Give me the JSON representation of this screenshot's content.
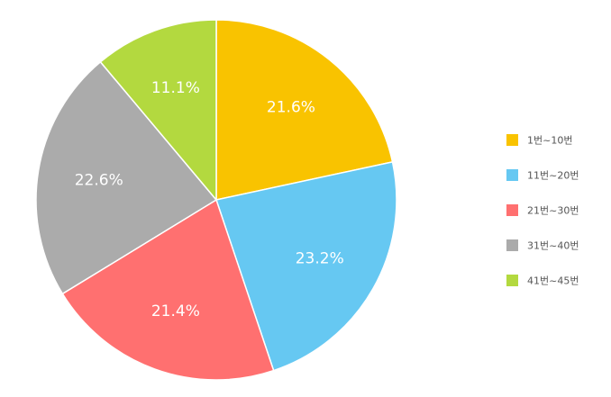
{
  "chart_data": {
    "type": "pie",
    "title": "",
    "categories": [
      "1번~10번",
      "11번~20번",
      "21번~30번",
      "31번~40번",
      "41번~45번"
    ],
    "values": [
      21.6,
      23.2,
      21.4,
      22.6,
      11.1
    ],
    "labels": [
      "21.6%",
      "23.2%",
      "21.4%",
      "22.6%",
      "11.1%"
    ],
    "colors": [
      "#F9C300",
      "#66C8F2",
      "#FF7070",
      "#ABABAB",
      "#B3D93F"
    ],
    "legend_position": "right",
    "start_angle": "12 o'clock",
    "direction": "clockwise"
  }
}
